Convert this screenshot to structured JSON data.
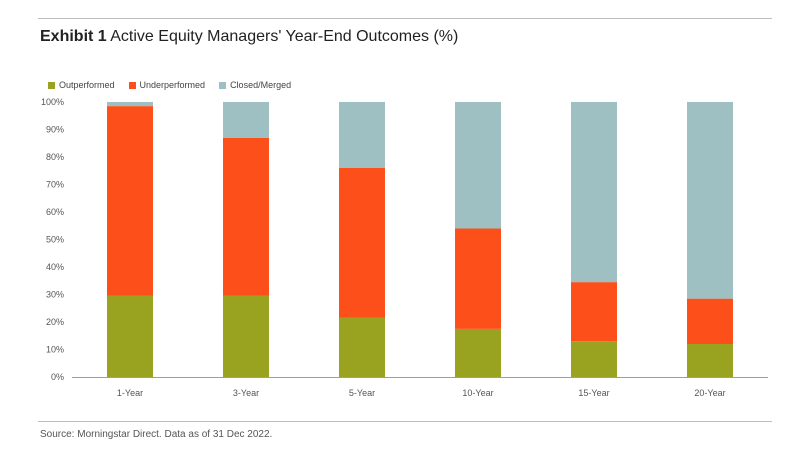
{
  "header": {
    "exhibit": "Exhibit 1",
    "title": "Active Equity Managers' Year-End Outcomes (%)"
  },
  "footer": {
    "source": "Source: Morningstar Direct. Data as of 31 Dec 2022."
  },
  "chart_data": {
    "type": "bar",
    "stacked": true,
    "categories": [
      "1-Year",
      "3-Year",
      "5-Year",
      "10-Year",
      "15-Year",
      "20-Year"
    ],
    "series": [
      {
        "name": "Outperformed",
        "color": "#9aa31f",
        "values": [
          29.5,
          29.5,
          21.5,
          17.5,
          13,
          12
        ]
      },
      {
        "name": "Underperformed",
        "color": "#fc4f1a",
        "values": [
          69,
          57.5,
          54.5,
          36.5,
          21.5,
          16.5
        ]
      },
      {
        "name": "Closed/Merged",
        "color": "#9fc0c3",
        "values": [
          1.5,
          13,
          24,
          46,
          65.5,
          71.5
        ]
      }
    ],
    "yticks": [
      "0%",
      "10%",
      "20%",
      "30%",
      "40%",
      "50%",
      "60%",
      "70%",
      "80%",
      "90%",
      "100%"
    ],
    "ylim": [
      0,
      100
    ],
    "legend_position": "top-left",
    "grid": false
  }
}
